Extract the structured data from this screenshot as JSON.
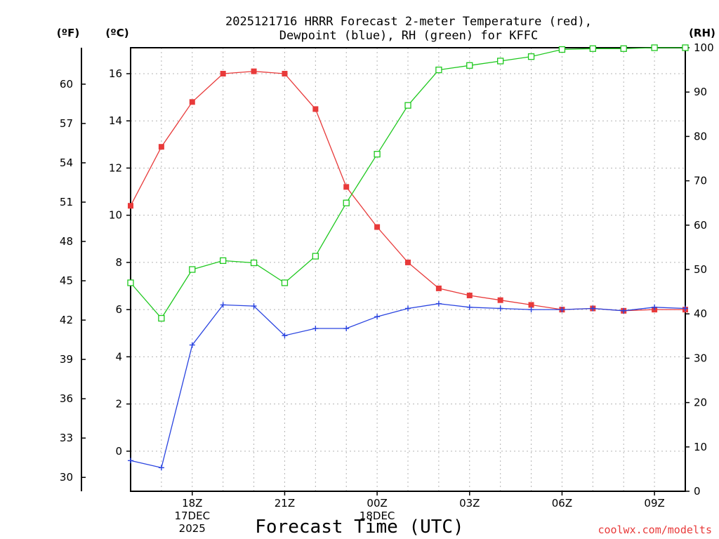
{
  "chart_data": {
    "type": "line",
    "title_lines": [
      "2025121716 HRRR Forecast 2-meter Temperature (red),",
      "Dewpoint (blue), RH (green) for KFFC"
    ],
    "xlabel": "Forecast Time (UTC)",
    "credit": "coolwx.com/modelts",
    "units": {
      "fahrenheit": "(ºF)",
      "celsius": "(ºC)",
      "rh": "(RH)"
    },
    "x": [
      16,
      17,
      18,
      19,
      20,
      21,
      22,
      23,
      24,
      25,
      26,
      27,
      28,
      29,
      30,
      31,
      32,
      33,
      34
    ],
    "x_range": [
      16,
      34
    ],
    "x_ticks": [
      {
        "x": 18,
        "lines": [
          "18Z",
          "17DEC",
          "2025"
        ]
      },
      {
        "x": 21,
        "lines": [
          "21Z"
        ]
      },
      {
        "x": 24,
        "lines": [
          "00Z",
          "18DEC"
        ]
      },
      {
        "x": 27,
        "lines": [
          "03Z"
        ]
      },
      {
        "x": 30,
        "lines": [
          "06Z"
        ]
      },
      {
        "x": 33,
        "lines": [
          "09Z"
        ]
      }
    ],
    "celsius_axis": {
      "range": [
        -1.7,
        17.1
      ],
      "ticks": [
        0,
        2,
        4,
        6,
        8,
        10,
        12,
        14,
        16
      ]
    },
    "fahrenheit_ticks": [
      30,
      33,
      36,
      39,
      42,
      45,
      48,
      51,
      54,
      57,
      60
    ],
    "rh_axis": {
      "range": [
        0,
        100
      ],
      "ticks": [
        0,
        10,
        20,
        30,
        40,
        50,
        60,
        70,
        80,
        90,
        100
      ]
    },
    "series": [
      {
        "name": "Temperature",
        "axis": "celsius",
        "color": "#e83a3a",
        "marker": "filled-square",
        "values": [
          10.4,
          12.9,
          14.8,
          16.0,
          16.1,
          16.0,
          14.5,
          11.2,
          9.5,
          8.0,
          6.9,
          6.6,
          6.4,
          6.2,
          6.0,
          6.05,
          5.95,
          6.0,
          6.0
        ]
      },
      {
        "name": "Dewpoint",
        "axis": "celsius",
        "color": "#2a44e0",
        "marker": "plus",
        "values": [
          -0.4,
          -0.7,
          4.5,
          6.2,
          6.15,
          4.9,
          5.2,
          5.2,
          5.7,
          6.05,
          6.25,
          6.1,
          6.05,
          6.0,
          6.0,
          6.05,
          5.95,
          6.1,
          6.05
        ]
      },
      {
        "name": "RH",
        "axis": "rh",
        "color": "#1ec81e",
        "marker": "open-square",
        "values": [
          47,
          39,
          50,
          52,
          51.5,
          47,
          53,
          65,
          76,
          87,
          95,
          96,
          97,
          98,
          99.6,
          99.8,
          99.8,
          100,
          100
        ]
      }
    ],
    "grid": true
  }
}
